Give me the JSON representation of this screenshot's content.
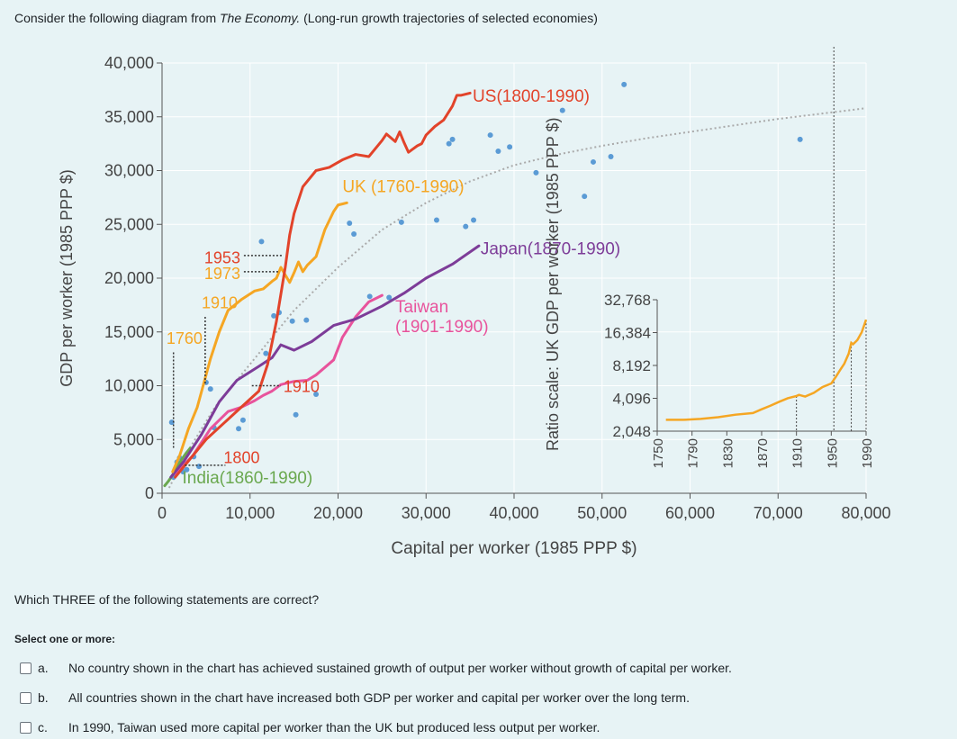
{
  "question": {
    "intro_prefix": "Consider the following diagram from ",
    "intro_book": "The Economy.",
    "intro_suffix": " (Long-run growth trajectories of selected economies)",
    "prompt": "Which THREE of the following statements are correct?",
    "select_label": "Select one or more:",
    "options": [
      {
        "letter": "a.",
        "text": "No country shown in the chart has achieved sustained growth of output per worker without growth of capital per worker."
      },
      {
        "letter": "b.",
        "text": "All countries shown in the chart have increased both GDP per worker and capital per worker over the long term."
      },
      {
        "letter": "c.",
        "text": "In 1990, Taiwan used more capital per worker than the UK but produced less output per worker."
      }
    ]
  },
  "chart_data": {
    "type": "line",
    "title": "Long-run growth trajectories of selected economies",
    "xlabel": "Capital per worker (1985 PPP $)",
    "ylabel": "GDP per worker (1985 PPP $)",
    "xlim": [
      0,
      80000
    ],
    "ylim": [
      0,
      40000
    ],
    "x_ticks": [
      0,
      10000,
      20000,
      30000,
      40000,
      50000,
      60000,
      70000,
      80000
    ],
    "x_tick_labels": [
      "0",
      "10,000",
      "20,000",
      "30,000",
      "40,000",
      "50,000",
      "60,000",
      "70,000",
      "80,000"
    ],
    "y_ticks": [
      0,
      5000,
      10000,
      15000,
      20000,
      25000,
      30000,
      35000,
      40000
    ],
    "y_tick_labels": [
      "0",
      "5,000",
      "10,000",
      "15,000",
      "20,000",
      "25,000",
      "30,000",
      "35,000",
      "40,000"
    ],
    "colors": {
      "US": "#e2432a",
      "UK": "#f5a623",
      "Japan": "#7d3c98",
      "Taiwan": "#e8539c",
      "India": "#6aa84f",
      "dots": "#5b9bd5",
      "frontier": "#aaaaaa"
    },
    "series": [
      {
        "name": "US",
        "label": "US(1800-1990)",
        "color": "#e2432a",
        "x": [
          1500,
          3000,
          5000,
          7000,
          9000,
          11000,
          12000,
          13000,
          14000,
          14500,
          15000,
          16000,
          17500,
          19000,
          20500,
          22000,
          23500,
          25000,
          25500,
          26500,
          27000,
          27500,
          28000,
          28500,
          29000,
          29500,
          30000,
          31000,
          32000,
          33000,
          33500,
          34000,
          35000
        ],
        "y": [
          1500,
          3000,
          5000,
          6500,
          8000,
          9500,
          12000,
          16000,
          21000,
          24000,
          26000,
          28500,
          30000,
          30300,
          31000,
          31500,
          31300,
          32800,
          33400,
          32700,
          33600,
          32600,
          31700,
          32000,
          32300,
          32500,
          33300,
          34100,
          34700,
          36000,
          37000,
          37000,
          37200
        ]
      },
      {
        "name": "UK",
        "label": "UK (1760-1990)",
        "color": "#f5a623",
        "x": [
          1200,
          2000,
          3000,
          4000,
          4500,
          5000,
          5500,
          6500,
          7500,
          9000,
          10500,
          11500,
          12500,
          13000,
          13500,
          14000,
          14500,
          15000,
          15500,
          16000,
          16500,
          17500,
          18500,
          19500,
          20000,
          21000
        ],
        "y": [
          2000,
          3500,
          6000,
          8000,
          9500,
          11000,
          12500,
          15000,
          17000,
          18000,
          18800,
          19000,
          19700,
          20000,
          21000,
          20300,
          19600,
          20500,
          21500,
          20600,
          21200,
          22000,
          24500,
          26200,
          26800,
          27000
        ]
      },
      {
        "name": "Japan",
        "label": "Japan(1870-1990)",
        "color": "#7d3c98",
        "x": [
          1000,
          2500,
          4500,
          6500,
          8500,
          11000,
          12500,
          13500,
          15000,
          17000,
          19500,
          22000,
          25000,
          27500,
          30000,
          33000,
          36000
        ],
        "y": [
          1500,
          3000,
          5500,
          8500,
          10500,
          11800,
          12600,
          13800,
          13300,
          14100,
          15600,
          16200,
          17400,
          18600,
          20000,
          21300,
          23000
        ]
      },
      {
        "name": "Taiwan",
        "label": "Taiwan\n(1901-1990)",
        "color": "#e8539c",
        "x": [
          1500,
          3500,
          5500,
          7500,
          9000,
          10500,
          11500,
          12500,
          13500,
          15000,
          16500,
          17500,
          18500,
          19500,
          20500,
          22000,
          23500,
          25000
        ],
        "y": [
          1800,
          3500,
          6000,
          7600,
          8000,
          8600,
          9100,
          9500,
          10100,
          10400,
          10500,
          11000,
          11700,
          12400,
          14500,
          16400,
          17800,
          18400
        ]
      },
      {
        "name": "India",
        "label": "India(1860-1990)",
        "color": "#6aa84f",
        "x": [
          300,
          700,
          1200,
          1700,
          2200,
          2700,
          3200
        ],
        "y": [
          700,
          1100,
          1700,
          2400,
          3100,
          3700,
          4200
        ]
      },
      {
        "name": "Frontier",
        "label": "",
        "color": "#aaaaaa",
        "x": [
          800,
          3000,
          6000,
          10000,
          15000,
          20000,
          25000,
          30000,
          35000,
          40000,
          45000,
          50000,
          55000,
          60000,
          65000,
          70000,
          75000,
          80000
        ],
        "y": [
          500,
          4000,
          8000,
          12000,
          17000,
          21000,
          24500,
          27000,
          29000,
          30500,
          31500,
          32300,
          33000,
          33600,
          34200,
          34800,
          35300,
          35800
        ]
      }
    ],
    "scatter_points": {
      "x": [
        1300,
        1700,
        2000,
        2400,
        2800,
        1100,
        3600,
        4200,
        5000,
        5500,
        5900,
        8700,
        9200,
        11300,
        11800,
        12700,
        13300,
        14800,
        15200,
        16400,
        17500,
        21300,
        21800,
        23600,
        25800,
        27200,
        31200,
        32600,
        33000,
        34500,
        35400,
        37300,
        38200,
        39500,
        42500,
        45500,
        48000,
        49000,
        51000,
        52500,
        72500
      ],
      "y": [
        1500,
        2900,
        3300,
        2000,
        2200,
        6600,
        3400,
        2500,
        10300,
        9700,
        6100,
        6000,
        6800,
        23400,
        13000,
        16500,
        16800,
        16000,
        7300,
        16100,
        9200,
        25100,
        24100,
        18300,
        18200,
        25200,
        25400,
        32500,
        32900,
        24800,
        25400,
        33300,
        31800,
        32200,
        29800,
        35600,
        27600,
        30800,
        31300,
        38000,
        32900
      ]
    },
    "annotations": {
      "uk_years": [
        "1953",
        "1973"
      ],
      "uk_1910": "1910",
      "uk_1760": "1760",
      "us_1910": "1910",
      "us_1800": "1800"
    },
    "inset": {
      "type": "line",
      "xlabel": "",
      "ylabel": "Ratio scale: UK GDP per worker (1985 PPP $)",
      "yscale": "log2",
      "y_ticks": [
        2048,
        4096,
        8192,
        16384,
        32768
      ],
      "y_tick_labels": [
        "2,048",
        "4,096",
        "8,192",
        "16,384",
        "32,768"
      ],
      "x_ticks": [
        1750,
        1790,
        1830,
        1870,
        1910,
        1950,
        1990
      ],
      "x_tick_labels": [
        "1750",
        "1790",
        "1830",
        "1870",
        "1910",
        "1950",
        "1990"
      ],
      "marked_years": [
        1910,
        1953,
        1973,
        1990
      ],
      "series": {
        "name": "UK",
        "years": [
          1760,
          1780,
          1800,
          1820,
          1840,
          1860,
          1870,
          1880,
          1890,
          1900,
          1910,
          1913,
          1920,
          1930,
          1940,
          1950,
          1955,
          1960,
          1965,
          1970,
          1973,
          1975,
          1980,
          1985,
          1990
        ],
        "values": [
          2600,
          2600,
          2650,
          2750,
          2900,
          3000,
          3250,
          3500,
          3800,
          4100,
          4300,
          4400,
          4250,
          4600,
          5200,
          5600,
          6400,
          7400,
          8500,
          10500,
          13200,
          12800,
          14000,
          16500,
          21500
        ]
      }
    }
  }
}
